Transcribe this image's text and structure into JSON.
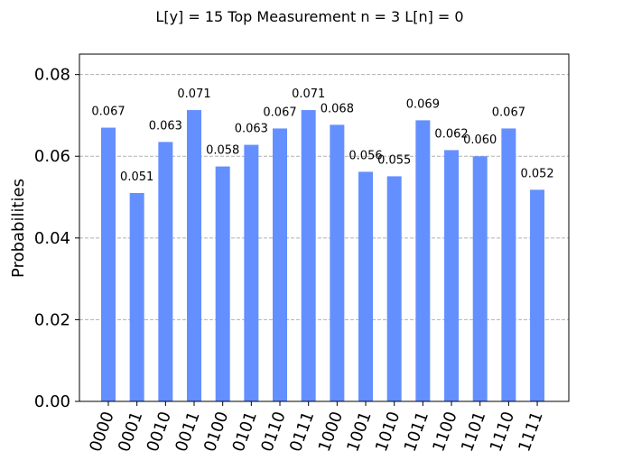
{
  "chart_data": {
    "type": "bar",
    "title": "L[y] = 15 Top Measurement n = 3 L[n] = 0",
    "xlabel": "",
    "ylabel": "Probabilities",
    "ylim": [
      0,
      0.085
    ],
    "yticks": [
      "0.00",
      "0.02",
      "0.04",
      "0.06",
      "0.08"
    ],
    "ytick_values": [
      0,
      0.02,
      0.04,
      0.06,
      0.08
    ],
    "grid": "horizontal-dashed",
    "bar_color": "#648fff",
    "categories": [
      "0000",
      "0001",
      "0010",
      "0011",
      "0100",
      "0101",
      "0110",
      "0111",
      "1000",
      "1001",
      "1010",
      "1011",
      "1100",
      "1101",
      "1110",
      "1111"
    ],
    "values": [
      0.067,
      0.051,
      0.0635,
      0.0713,
      0.0575,
      0.0628,
      0.0668,
      0.0713,
      0.0677,
      0.0562,
      0.0551,
      0.0688,
      0.0615,
      0.06,
      0.0668,
      0.0518
    ],
    "value_labels": [
      "0.067",
      "0.051",
      "0.063",
      "0.071",
      "0.058",
      "0.063",
      "0.067",
      "0.071",
      "0.068",
      "0.056",
      "0.055",
      "0.069",
      "0.062",
      "0.060",
      "0.067",
      "0.052"
    ]
  }
}
